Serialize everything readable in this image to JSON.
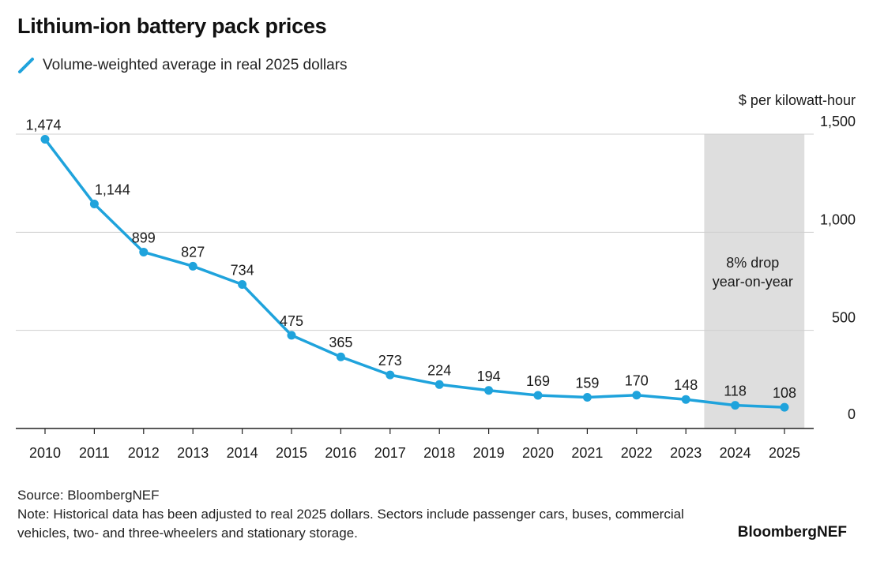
{
  "title": "Lithium-ion battery pack prices",
  "legend_label": "Volume-weighted average in real 2025 dollars",
  "unit_label": "$ per kilowatt-hour",
  "annotation": [
    "8% drop",
    "year-on-year"
  ],
  "source": "Source: BloombergNEF",
  "note": "Note: Historical data has been adjusted to real 2025 dollars. Sectors include passenger cars, buses, commercial vehicles, two- and three-wheelers and stationary storage.",
  "brand": "BloombergNEF",
  "colors": {
    "line": "#1fa3dc",
    "grid": "#cfcfcf",
    "shade": "#dedede",
    "axis": "#222222"
  },
  "chart_data": {
    "type": "line",
    "x": [
      "2010",
      "2011",
      "2012",
      "2013",
      "2014",
      "2015",
      "2016",
      "2017",
      "2018",
      "2019",
      "2020",
      "2021",
      "2022",
      "2023",
      "2024",
      "2025"
    ],
    "series": [
      {
        "name": "Volume-weighted average in real 2025 dollars",
        "values": [
          1474,
          1144,
          899,
          827,
          734,
          475,
          365,
          273,
          224,
          194,
          169,
          159,
          170,
          148,
          118,
          108
        ],
        "data_labels": [
          "1,474",
          "1,144",
          "899",
          "827",
          "734",
          "475",
          "365",
          "273",
          "224",
          "194",
          "169",
          "159",
          "170",
          "148",
          "118",
          "108"
        ]
      }
    ],
    "ylabel": "$ per kilowatt-hour",
    "ylim": [
      0,
      1500
    ],
    "yticks": [
      0,
      500,
      1000,
      1500
    ],
    "ytick_labels": [
      "0",
      "500",
      "1,000",
      "1,500"
    ],
    "y_axis_side": "right",
    "grid": true,
    "shaded_range": [
      "2024",
      "2025"
    ],
    "annotation": "8% drop year-on-year"
  }
}
